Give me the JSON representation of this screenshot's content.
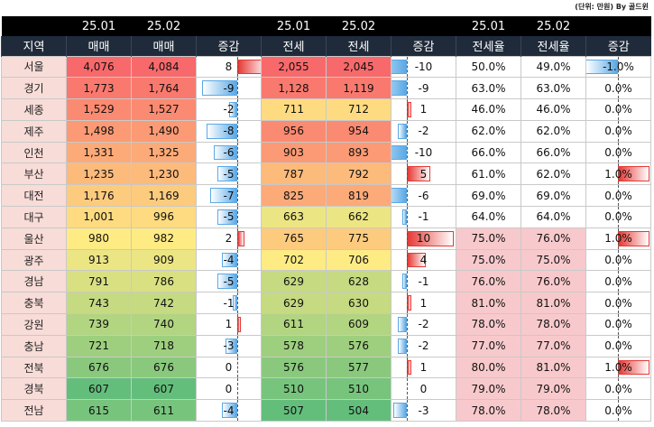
{
  "unit_note": "(단위: 만원) By 골드윈",
  "header_top": [
    "",
    "25.01",
    "25.02",
    "",
    "25.01",
    "25.02",
    "",
    "25.01",
    "25.02",
    ""
  ],
  "header_labels": [
    "지역",
    "매매",
    "매매",
    "증감",
    "전세",
    "전세",
    "증감",
    "전세율",
    "전세율",
    "증감"
  ],
  "colors": {
    "change_increase": "#e53935",
    "change_decrease": "#5aa9e6",
    "rate_highlight": "#f8c9cc",
    "region_cell": "#f8dcd8"
  },
  "chart_data": {
    "type": "table",
    "columns": [
      "지역",
      "25.01 매매",
      "25.02 매매",
      "매매 증감",
      "25.01 전세",
      "25.02 전세",
      "전세 증감",
      "25.01 전세율",
      "25.02 전세율",
      "전세율 증감"
    ],
    "rows": [
      {
        "region": "서울",
        "sale1": "4,076",
        "sale2": "4,084",
        "sale_chg": "8",
        "jeonse1": "2,055",
        "jeonse2": "2,045",
        "jeonse_chg": "-10",
        "rate1": "50.0%",
        "rate2": "49.0%",
        "rate_chg": "-1.0%"
      },
      {
        "region": "경기",
        "sale1": "1,773",
        "sale2": "1,764",
        "sale_chg": "-9",
        "jeonse1": "1,128",
        "jeonse2": "1,119",
        "jeonse_chg": "-9",
        "rate1": "63.0%",
        "rate2": "63.0%",
        "rate_chg": "0.0%"
      },
      {
        "region": "세종",
        "sale1": "1,529",
        "sale2": "1,527",
        "sale_chg": "-2",
        "jeonse1": "711",
        "jeonse2": "712",
        "jeonse_chg": "1",
        "rate1": "46.0%",
        "rate2": "46.0%",
        "rate_chg": "0.0%"
      },
      {
        "region": "제주",
        "sale1": "1,498",
        "sale2": "1,490",
        "sale_chg": "-8",
        "jeonse1": "956",
        "jeonse2": "954",
        "jeonse_chg": "-2",
        "rate1": "62.0%",
        "rate2": "62.0%",
        "rate_chg": "0.0%"
      },
      {
        "region": "인천",
        "sale1": "1,331",
        "sale2": "1,325",
        "sale_chg": "-6",
        "jeonse1": "903",
        "jeonse2": "893",
        "jeonse_chg": "-10",
        "rate1": "66.0%",
        "rate2": "66.0%",
        "rate_chg": "0.0%"
      },
      {
        "region": "부산",
        "sale1": "1,235",
        "sale2": "1,230",
        "sale_chg": "-5",
        "jeonse1": "787",
        "jeonse2": "792",
        "jeonse_chg": "5",
        "rate1": "61.0%",
        "rate2": "62.0%",
        "rate_chg": "1.0%"
      },
      {
        "region": "대전",
        "sale1": "1,176",
        "sale2": "1,169",
        "sale_chg": "-7",
        "jeonse1": "825",
        "jeonse2": "819",
        "jeonse_chg": "-6",
        "rate1": "69.0%",
        "rate2": "69.0%",
        "rate_chg": "0.0%"
      },
      {
        "region": "대구",
        "sale1": "1,001",
        "sale2": "996",
        "sale_chg": "-5",
        "jeonse1": "663",
        "jeonse2": "662",
        "jeonse_chg": "-1",
        "rate1": "64.0%",
        "rate2": "64.0%",
        "rate_chg": "0.0%"
      },
      {
        "region": "울산",
        "sale1": "980",
        "sale2": "982",
        "sale_chg": "2",
        "jeonse1": "765",
        "jeonse2": "775",
        "jeonse_chg": "10",
        "rate1": "75.0%",
        "rate2": "76.0%",
        "rate_chg": "1.0%"
      },
      {
        "region": "광주",
        "sale1": "913",
        "sale2": "909",
        "sale_chg": "-4",
        "jeonse1": "702",
        "jeonse2": "706",
        "jeonse_chg": "4",
        "rate1": "75.0%",
        "rate2": "75.0%",
        "rate_chg": "0.0%"
      },
      {
        "region": "경남",
        "sale1": "791",
        "sale2": "786",
        "sale_chg": "-5",
        "jeonse1": "629",
        "jeonse2": "628",
        "jeonse_chg": "-1",
        "rate1": "76.0%",
        "rate2": "76.0%",
        "rate_chg": "0.0%"
      },
      {
        "region": "충북",
        "sale1": "743",
        "sale2": "742",
        "sale_chg": "-1",
        "jeonse1": "629",
        "jeonse2": "630",
        "jeonse_chg": "1",
        "rate1": "81.0%",
        "rate2": "81.0%",
        "rate_chg": "0.0%"
      },
      {
        "region": "강원",
        "sale1": "739",
        "sale2": "740",
        "sale_chg": "1",
        "jeonse1": "611",
        "jeonse2": "609",
        "jeonse_chg": "-2",
        "rate1": "78.0%",
        "rate2": "78.0%",
        "rate_chg": "0.0%"
      },
      {
        "region": "충남",
        "sale1": "721",
        "sale2": "718",
        "sale_chg": "-3",
        "jeonse1": "578",
        "jeonse2": "576",
        "jeonse_chg": "-2",
        "rate1": "77.0%",
        "rate2": "77.0%",
        "rate_chg": "0.0%"
      },
      {
        "region": "전북",
        "sale1": "676",
        "sale2": "676",
        "sale_chg": "0",
        "jeonse1": "576",
        "jeonse2": "577",
        "jeonse_chg": "1",
        "rate1": "80.0%",
        "rate2": "81.0%",
        "rate_chg": "1.0%"
      },
      {
        "region": "경북",
        "sale1": "607",
        "sale2": "607",
        "sale_chg": "0",
        "jeonse1": "510",
        "jeonse2": "510",
        "jeonse_chg": "0",
        "rate1": "79.0%",
        "rate2": "79.0%",
        "rate_chg": "0.0%"
      },
      {
        "region": "전남",
        "sale1": "615",
        "sale2": "611",
        "sale_chg": "-4",
        "jeonse1": "507",
        "jeonse2": "504",
        "jeonse_chg": "-3",
        "rate1": "78.0%",
        "rate2": "78.0%",
        "rate_chg": "0.0%"
      }
    ]
  }
}
